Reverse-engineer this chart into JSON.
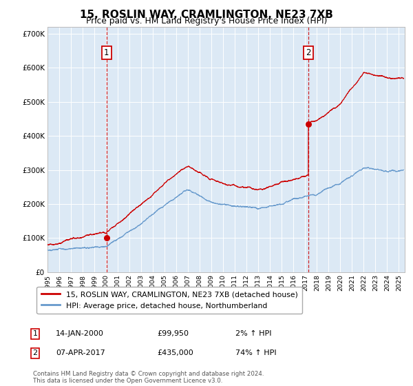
{
  "title": "15, ROSLIN WAY, CRAMLINGTON, NE23 7XB",
  "subtitle": "Price paid vs. HM Land Registry's House Price Index (HPI)",
  "legend_line1": "15, ROSLIN WAY, CRAMLINGTON, NE23 7XB (detached house)",
  "legend_line2": "HPI: Average price, detached house, Northumberland",
  "annotation1_label": "1",
  "annotation1_date": "14-JAN-2000",
  "annotation1_price": "£99,950",
  "annotation1_hpi": "2% ↑ HPI",
  "annotation1_year": 2000.04,
  "annotation1_value": 99950,
  "annotation2_label": "2",
  "annotation2_date": "07-APR-2017",
  "annotation2_price": "£435,000",
  "annotation2_hpi": "74% ↑ HPI",
  "annotation2_year": 2017.27,
  "annotation2_value": 435000,
  "xmin": 1995.0,
  "xmax": 2025.5,
  "ymin": 0,
  "ymax": 720000,
  "background_color": "#dce9f5",
  "red_line_color": "#cc0000",
  "blue_line_color": "#6699cc",
  "grid_color": "#ffffff",
  "footnote": "Contains HM Land Registry data © Crown copyright and database right 2024.\nThis data is licensed under the Open Government Licence v3.0."
}
